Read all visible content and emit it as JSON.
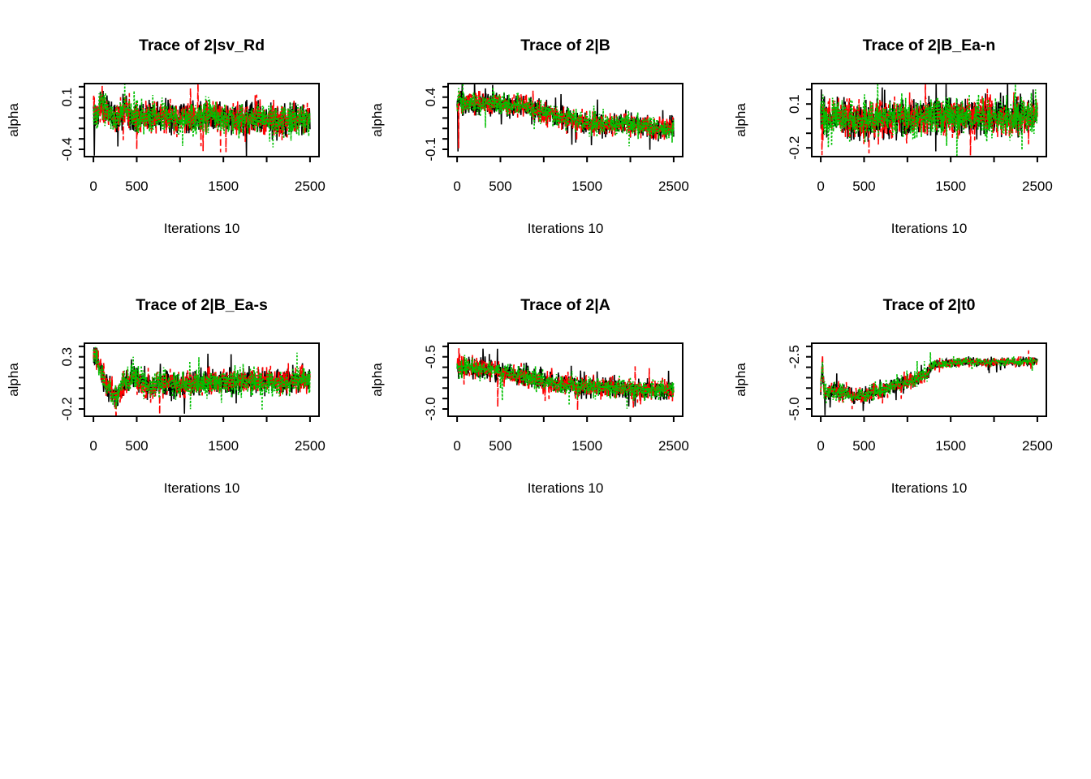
{
  "figure": {
    "background": "#ffffff",
    "grid": {
      "rows": 2,
      "cols": 3
    },
    "chain_colors": [
      "#000000",
      "#ff0000",
      "#00c000"
    ]
  },
  "chart_data": [
    {
      "name": "sv-rd",
      "type": "line",
      "title": "Trace of 2|sv_Rd",
      "xlabel": "Iterations 10",
      "ylabel": "alpha",
      "x_range": [
        0,
        2500
      ],
      "xlim": [
        -104,
        2604
      ],
      "ylim": [
        -0.47,
        0.23
      ],
      "x_ticks": [
        {
          "v": 0,
          "l": "0"
        },
        {
          "v": 500,
          "l": "500"
        },
        {
          "v": 1000,
          "l": ""
        },
        {
          "v": 1500,
          "l": "1500"
        },
        {
          "v": 2000,
          "l": ""
        },
        {
          "v": 2500,
          "l": "2500"
        }
      ],
      "y_ticks": [
        {
          "v": 0.2,
          "l": ""
        },
        {
          "v": 0.1,
          "l": "0.1"
        },
        {
          "v": 0.0,
          "l": ""
        },
        {
          "v": -0.1,
          "l": ""
        },
        {
          "v": -0.2,
          "l": ""
        },
        {
          "v": -0.3,
          "l": ""
        },
        {
          "v": -0.4,
          "l": "-0.4"
        }
      ],
      "n_points": 720,
      "noise_sd": 0.075,
      "mean_path": [
        [
          0,
          0.0
        ],
        [
          40,
          -0.1
        ],
        [
          80,
          0.03
        ],
        [
          160,
          -0.02
        ],
        [
          260,
          -0.12
        ],
        [
          360,
          0.02
        ],
        [
          460,
          -0.09
        ],
        [
          700,
          -0.08
        ],
        [
          1000,
          -0.1
        ],
        [
          1400,
          -0.09
        ],
        [
          1800,
          -0.12
        ],
        [
          2200,
          -0.12
        ],
        [
          2500,
          -0.11
        ]
      ],
      "series": [
        {
          "name": "chain-1",
          "color": "#000000",
          "dash": "",
          "seed": 101,
          "spikes": [
            [
              10,
              -0.46
            ]
          ]
        },
        {
          "name": "chain-2",
          "color": "#ff0000",
          "dash": "8 4",
          "seed": 102,
          "spikes": [
            [
              500,
              -0.4
            ]
          ]
        },
        {
          "name": "chain-3",
          "color": "#00c000",
          "dash": "2.2 2.2",
          "seed": 103,
          "spikes": []
        }
      ]
    },
    {
      "name": "b",
      "type": "line",
      "title": "Trace of 2|B",
      "xlabel": "Iterations 10",
      "ylabel": "alpha",
      "x_range": [
        0,
        2500
      ],
      "xlim": [
        -104,
        2604
      ],
      "ylim": [
        -0.17,
        0.53
      ],
      "x_ticks": [
        {
          "v": 0,
          "l": "0"
        },
        {
          "v": 500,
          "l": "500"
        },
        {
          "v": 1000,
          "l": ""
        },
        {
          "v": 1500,
          "l": "1500"
        },
        {
          "v": 2000,
          "l": ""
        },
        {
          "v": 2500,
          "l": "2500"
        }
      ],
      "y_ticks": [
        {
          "v": 0.5,
          "l": ""
        },
        {
          "v": 0.4,
          "l": "0.4"
        },
        {
          "v": 0.3,
          "l": ""
        },
        {
          "v": 0.2,
          "l": ""
        },
        {
          "v": 0.1,
          "l": ""
        },
        {
          "v": 0.0,
          "l": ""
        },
        {
          "v": -0.1,
          "l": "-0.1"
        }
      ],
      "n_points": 720,
      "noise_sd": 0.05,
      "mean_path": [
        [
          0,
          0.28
        ],
        [
          20,
          0.4
        ],
        [
          60,
          0.34
        ],
        [
          200,
          0.34
        ],
        [
          420,
          0.35
        ],
        [
          600,
          0.32
        ],
        [
          800,
          0.31
        ],
        [
          950,
          0.27
        ],
        [
          1100,
          0.23
        ],
        [
          1250,
          0.2
        ],
        [
          1450,
          0.16
        ],
        [
          1650,
          0.14
        ],
        [
          1850,
          0.12
        ],
        [
          1950,
          0.16
        ],
        [
          2100,
          0.12
        ],
        [
          2300,
          0.1
        ],
        [
          2500,
          0.11
        ]
      ],
      "series": [
        {
          "name": "chain-1",
          "color": "#000000",
          "dash": "",
          "seed": 111,
          "spikes": [
            [
              12,
              -0.12
            ]
          ]
        },
        {
          "name": "chain-2",
          "color": "#ff0000",
          "dash": "8 4",
          "seed": 112,
          "spikes": [
            [
              18,
              -0.09
            ],
            [
              26,
              0.46
            ]
          ]
        },
        {
          "name": "chain-3",
          "color": "#00c000",
          "dash": "2.2 2.2",
          "seed": 113,
          "spikes": []
        }
      ]
    },
    {
      "name": "b-ea-n",
      "type": "line",
      "title": "Trace of 2|B_Ea-n",
      "xlabel": "Iterations 10",
      "ylabel": "alpha",
      "x_range": [
        0,
        2500
      ],
      "xlim": [
        -104,
        2604
      ],
      "ylim": [
        -0.26,
        0.24
      ],
      "x_ticks": [
        {
          "v": 0,
          "l": "0"
        },
        {
          "v": 500,
          "l": "500"
        },
        {
          "v": 1000,
          "l": ""
        },
        {
          "v": 1500,
          "l": "1500"
        },
        {
          "v": 2000,
          "l": ""
        },
        {
          "v": 2500,
          "l": "2500"
        }
      ],
      "y_ticks": [
        {
          "v": 0.2,
          "l": ""
        },
        {
          "v": 0.1,
          "l": "0.1"
        },
        {
          "v": 0.0,
          "l": ""
        },
        {
          "v": -0.1,
          "l": ""
        },
        {
          "v": -0.2,
          "l": "-0.2"
        }
      ],
      "n_points": 720,
      "noise_sd": 0.062,
      "mean_path": [
        [
          0,
          0.05
        ],
        [
          60,
          0.0
        ],
        [
          200,
          0.01
        ],
        [
          400,
          -0.02
        ],
        [
          700,
          0.0
        ],
        [
          1000,
          0.0
        ],
        [
          1300,
          0.02
        ],
        [
          1600,
          0.01
        ],
        [
          1900,
          0.01
        ],
        [
          2200,
          0.0
        ],
        [
          2500,
          0.04
        ]
      ],
      "series": [
        {
          "name": "chain-1",
          "color": "#000000",
          "dash": "",
          "seed": 121,
          "spikes": [
            [
              6,
              0.2
            ]
          ]
        },
        {
          "name": "chain-2",
          "color": "#ff0000",
          "dash": "8 4",
          "seed": 122,
          "spikes": [
            [
              14,
              -0.25
            ]
          ]
        },
        {
          "name": "chain-3",
          "color": "#00c000",
          "dash": "2.2 2.2",
          "seed": 123,
          "spikes": [
            [
              2480,
              0.2
            ]
          ]
        }
      ]
    },
    {
      "name": "b-ea-s",
      "type": "line",
      "title": "Trace of 2|B_Ea-s",
      "xlabel": "Iterations 10",
      "ylabel": "alpha",
      "x_range": [
        0,
        2500
      ],
      "xlim": [
        -104,
        2604
      ],
      "ylim": [
        -0.27,
        0.43
      ],
      "x_ticks": [
        {
          "v": 0,
          "l": "0"
        },
        {
          "v": 500,
          "l": "500"
        },
        {
          "v": 1000,
          "l": ""
        },
        {
          "v": 1500,
          "l": "1500"
        },
        {
          "v": 2000,
          "l": ""
        },
        {
          "v": 2500,
          "l": "2500"
        }
      ],
      "y_ticks": [
        {
          "v": 0.4,
          "l": ""
        },
        {
          "v": 0.3,
          "l": "0.3"
        },
        {
          "v": 0.2,
          "l": ""
        },
        {
          "v": 0.1,
          "l": ""
        },
        {
          "v": 0.0,
          "l": ""
        },
        {
          "v": -0.1,
          "l": ""
        },
        {
          "v": -0.2,
          "l": "-0.2"
        }
      ],
      "n_points": 720,
      "noise_sd": 0.06,
      "mean_path": [
        [
          0,
          0.28
        ],
        [
          30,
          0.33
        ],
        [
          90,
          0.15
        ],
        [
          160,
          0.0
        ],
        [
          230,
          -0.05
        ],
        [
          300,
          -0.03
        ],
        [
          380,
          0.04
        ],
        [
          450,
          0.12
        ],
        [
          520,
          0.09
        ],
        [
          600,
          0.02
        ],
        [
          700,
          0.02
        ],
        [
          850,
          0.06
        ],
        [
          1000,
          0.03
        ],
        [
          1200,
          0.05
        ],
        [
          1450,
          0.07
        ],
        [
          1700,
          0.07
        ],
        [
          1950,
          0.06
        ],
        [
          2200,
          0.06
        ],
        [
          2450,
          0.07
        ],
        [
          2500,
          0.1
        ]
      ],
      "series": [
        {
          "name": "chain-1",
          "color": "#000000",
          "dash": "",
          "seed": 131,
          "spikes": [
            [
              8,
              0.39
            ],
            [
              1320,
              0.33
            ]
          ]
        },
        {
          "name": "chain-2",
          "color": "#ff0000",
          "dash": "8 4",
          "seed": 132,
          "spikes": []
        },
        {
          "name": "chain-3",
          "color": "#00c000",
          "dash": "2.2 2.2",
          "seed": 133,
          "spikes": [
            [
              2350,
              0.34
            ],
            [
              460,
              0.3
            ]
          ]
        }
      ]
    },
    {
      "name": "a",
      "type": "line",
      "title": "Trace of 2|A",
      "xlabel": "Iterations 10",
      "ylabel": "alpha",
      "x_range": [
        0,
        2500
      ],
      "xlim": [
        -104,
        2604
      ],
      "ylim": [
        -3.35,
        0.15
      ],
      "x_ticks": [
        {
          "v": 0,
          "l": "0"
        },
        {
          "v": 500,
          "l": "500"
        },
        {
          "v": 1000,
          "l": ""
        },
        {
          "v": 1500,
          "l": "1500"
        },
        {
          "v": 2000,
          "l": ""
        },
        {
          "v": 2500,
          "l": "2500"
        }
      ],
      "y_ticks": [
        {
          "v": 0.0,
          "l": ""
        },
        {
          "v": -0.5,
          "l": "-0.5"
        },
        {
          "v": -1.0,
          "l": ""
        },
        {
          "v": -1.5,
          "l": ""
        },
        {
          "v": -2.0,
          "l": ""
        },
        {
          "v": -2.5,
          "l": ""
        },
        {
          "v": -3.0,
          "l": "-3.0"
        }
      ],
      "n_points": 720,
      "noise_sd": 0.24,
      "mean_path": [
        [
          0,
          -0.95
        ],
        [
          60,
          -1.0
        ],
        [
          200,
          -1.05
        ],
        [
          400,
          -1.15
        ],
        [
          600,
          -1.3
        ],
        [
          800,
          -1.45
        ],
        [
          1000,
          -1.65
        ],
        [
          1200,
          -1.8
        ],
        [
          1400,
          -1.9
        ],
        [
          1600,
          -1.95
        ],
        [
          1800,
          -2.0
        ],
        [
          2000,
          -2.05
        ],
        [
          2200,
          -2.1
        ],
        [
          2500,
          -2.05
        ]
      ],
      "series": [
        {
          "name": "chain-1",
          "color": "#000000",
          "dash": "",
          "seed": 141,
          "spikes": []
        },
        {
          "name": "chain-2",
          "color": "#ff0000",
          "dash": "8 4",
          "seed": 142,
          "spikes": [
            [
              30,
              -0.4
            ],
            [
              470,
              -2.9
            ],
            [
              1390,
              -3.05
            ]
          ]
        },
        {
          "name": "chain-3",
          "color": "#00c000",
          "dash": "2.2 2.2",
          "seed": 143,
          "spikes": [
            [
              520,
              -2.6
            ]
          ]
        }
      ]
    },
    {
      "name": "t0",
      "type": "line",
      "title": "Trace of 2|t0",
      "xlabel": "Iterations 10",
      "ylabel": "alpha",
      "x_range": [
        0,
        2500
      ],
      "xlim": [
        -104,
        2604
      ],
      "ylim": [
        -5.35,
        -1.85
      ],
      "x_ticks": [
        {
          "v": 0,
          "l": "0"
        },
        {
          "v": 500,
          "l": "500"
        },
        {
          "v": 1000,
          "l": ""
        },
        {
          "v": 1500,
          "l": "1500"
        },
        {
          "v": 2000,
          "l": ""
        },
        {
          "v": 2500,
          "l": "2500"
        }
      ],
      "y_ticks": [
        {
          "v": -2.0,
          "l": ""
        },
        {
          "v": -2.5,
          "l": "-2.5"
        },
        {
          "v": -3.0,
          "l": ""
        },
        {
          "v": -3.5,
          "l": ""
        },
        {
          "v": -4.0,
          "l": ""
        },
        {
          "v": -4.5,
          "l": ""
        },
        {
          "v": -5.0,
          "l": "-5.0"
        }
      ],
      "n_points": 720,
      "noise_sd": 0.2,
      "noise_path": [
        [
          0,
          0.2
        ],
        [
          1150,
          0.18
        ],
        [
          1320,
          0.11
        ],
        [
          2500,
          0.1
        ]
      ],
      "mean_path": [
        [
          0,
          -4.0
        ],
        [
          18,
          -2.7
        ],
        [
          40,
          -4.3
        ],
        [
          120,
          -4.1
        ],
        [
          250,
          -4.25
        ],
        [
          400,
          -4.4
        ],
        [
          550,
          -4.3
        ],
        [
          700,
          -4.1
        ],
        [
          850,
          -3.9
        ],
        [
          1000,
          -3.7
        ],
        [
          1150,
          -3.5
        ],
        [
          1230,
          -3.35
        ],
        [
          1265,
          -2.95
        ],
        [
          1350,
          -2.85
        ],
        [
          1500,
          -2.8
        ],
        [
          1700,
          -2.72
        ],
        [
          1900,
          -2.78
        ],
        [
          2100,
          -2.72
        ],
        [
          2300,
          -2.75
        ],
        [
          2500,
          -2.68
        ]
      ],
      "series": [
        {
          "name": "chain-1",
          "color": "#000000",
          "dash": "",
          "seed": 151,
          "spikes": [
            [
              48,
              -5.3
            ]
          ]
        },
        {
          "name": "chain-2",
          "color": "#ff0000",
          "dash": "8 4",
          "seed": 152,
          "spikes": [
            [
              22,
              -2.4
            ]
          ]
        },
        {
          "name": "chain-3",
          "color": "#00c000",
          "dash": "2.2 2.2",
          "seed": 153,
          "spikes": []
        }
      ]
    }
  ]
}
